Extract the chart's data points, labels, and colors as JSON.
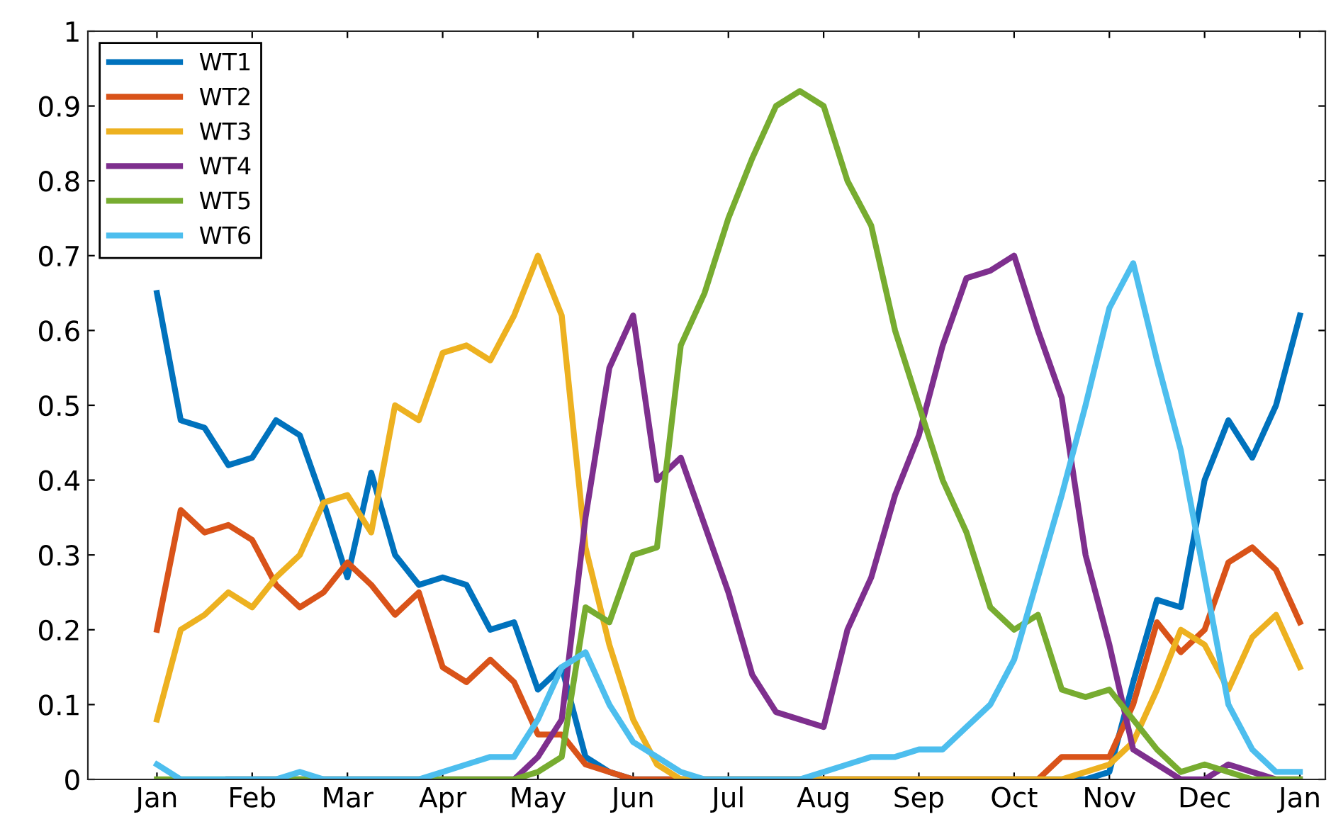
{
  "chart_data": {
    "type": "line",
    "categories": [
      "Jan",
      null,
      null,
      null,
      "Feb",
      null,
      null,
      null,
      "Mar",
      null,
      null,
      null,
      "Apr",
      null,
      null,
      null,
      "May",
      null,
      null,
      null,
      "Jun",
      null,
      null,
      null,
      "Jul",
      null,
      null,
      null,
      "Aug",
      null,
      null,
      null,
      "Sep",
      null,
      null,
      null,
      "Oct",
      null,
      null,
      null,
      "Nov",
      null,
      null,
      null,
      "Dec",
      null,
      null,
      null,
      "Jan"
    ],
    "series": [
      {
        "name": "WT1",
        "color": "#0072bd",
        "values": [
          0.65,
          0.48,
          0.47,
          0.42,
          0.43,
          0.48,
          0.46,
          0.37,
          0.27,
          0.41,
          0.3,
          0.26,
          0.27,
          0.26,
          0.2,
          0.21,
          0.12,
          0.15,
          0.03,
          0.01,
          0,
          0,
          0,
          0,
          0,
          0,
          0,
          0,
          0,
          0,
          0,
          0,
          0,
          0,
          0,
          0,
          0,
          0,
          0,
          0,
          0.01,
          0.13,
          0.24,
          0.23,
          0.4,
          0.48,
          0.43,
          0.5,
          0.62
        ]
      },
      {
        "name": "WT2",
        "color": "#d95319",
        "values": [
          0.2,
          0.36,
          0.33,
          0.34,
          0.32,
          0.26,
          0.23,
          0.25,
          0.29,
          0.26,
          0.22,
          0.25,
          0.15,
          0.13,
          0.16,
          0.13,
          0.06,
          0.06,
          0.02,
          0.01,
          0,
          0,
          0,
          0,
          0,
          0,
          0,
          0,
          0,
          0,
          0,
          0,
          0,
          0,
          0,
          0,
          0,
          0,
          0.03,
          0.03,
          0.03,
          0.1,
          0.21,
          0.17,
          0.2,
          0.29,
          0.31,
          0.28,
          0.21
        ]
      },
      {
        "name": "WT3",
        "color": "#edb120",
        "values": [
          0.08,
          0.2,
          0.22,
          0.25,
          0.23,
          0.27,
          0.3,
          0.37,
          0.38,
          0.33,
          0.5,
          0.48,
          0.57,
          0.58,
          0.56,
          0.62,
          0.7,
          0.62,
          0.31,
          0.18,
          0.08,
          0.02,
          0,
          0,
          0,
          0,
          0,
          0,
          0,
          0,
          0,
          0,
          0,
          0,
          0,
          0,
          0,
          0,
          0,
          0.01,
          0.02,
          0.05,
          0.12,
          0.2,
          0.18,
          0.12,
          0.19,
          0.22,
          0.15
        ]
      },
      {
        "name": "WT4",
        "color": "#7e2f8e",
        "values": [
          null,
          null,
          null,
          0,
          0,
          0,
          0,
          0,
          0,
          0,
          0,
          0,
          0,
          0,
          0,
          0,
          0.03,
          0.08,
          0.35,
          0.55,
          0.62,
          0.4,
          0.43,
          0.34,
          0.25,
          0.14,
          0.09,
          0.08,
          0.07,
          0.2,
          0.27,
          0.38,
          0.46,
          0.58,
          0.67,
          0.68,
          0.7,
          0.6,
          0.51,
          0.3,
          0.18,
          0.04,
          0.02,
          0,
          0,
          0.02,
          0.01,
          0,
          0
        ]
      },
      {
        "name": "WT5",
        "color": "#77ac30",
        "values": [
          0,
          0,
          0,
          0,
          0,
          0,
          0,
          0,
          0,
          0,
          0,
          0,
          0,
          0,
          0,
          0,
          0.01,
          0.03,
          0.23,
          0.21,
          0.3,
          0.31,
          0.58,
          0.65,
          0.75,
          0.83,
          0.9,
          0.92,
          0.9,
          0.8,
          0.74,
          0.6,
          0.5,
          0.4,
          0.33,
          0.23,
          0.2,
          0.22,
          0.12,
          0.11,
          0.12,
          0.08,
          0.04,
          0.01,
          0.02,
          0.01,
          0,
          0,
          0
        ]
      },
      {
        "name": "WT6",
        "color": "#4dbeee",
        "values": [
          0.02,
          0,
          0,
          0,
          0,
          0,
          0.01,
          0,
          0,
          0,
          0,
          0,
          0.01,
          0.02,
          0.03,
          0.03,
          0.08,
          0.15,
          0.17,
          0.1,
          0.05,
          0.03,
          0.01,
          0,
          0,
          0,
          0,
          0,
          0.01,
          0.02,
          0.03,
          0.03,
          0.04,
          0.04,
          0.07,
          0.1,
          0.16,
          0.27,
          0.38,
          0.5,
          0.63,
          0.69,
          0.56,
          0.44,
          0.27,
          0.1,
          0.04,
          0.01,
          0.01
        ]
      }
    ],
    "ylim": [
      0,
      1
    ],
    "yticks": [
      0,
      0.1,
      0.2,
      0.3,
      0.4,
      0.5,
      0.6,
      0.7,
      0.8,
      0.9,
      1
    ],
    "grid": false,
    "legend": "top left",
    "marker": "none",
    "line_style": "solid"
  }
}
